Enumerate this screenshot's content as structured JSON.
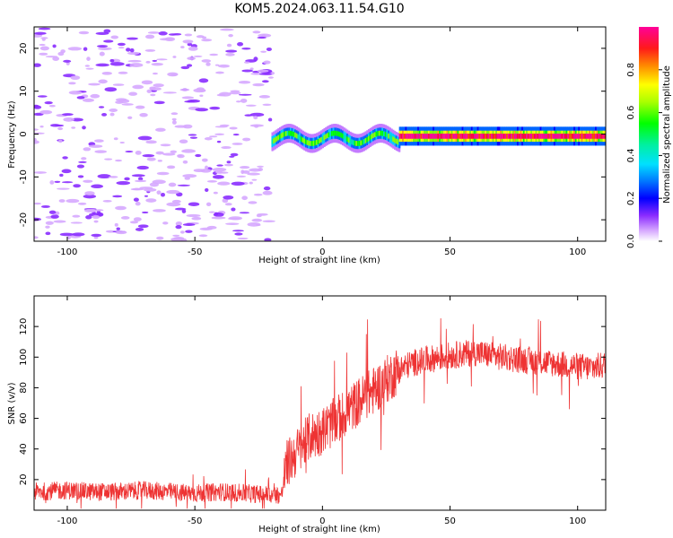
{
  "figure_title": "KOM5.2024.063.11.54.G10",
  "colors": {
    "snr_line": "#ee3333",
    "axes": "#000000",
    "colormap": [
      "#e8b8ff",
      "#c47bff",
      "#7a1cff",
      "#0000ff",
      "#0066ff",
      "#00ccff",
      "#00e8b0",
      "#00ff00",
      "#88ff00",
      "#ffff00",
      "#ffaa00",
      "#ff4400",
      "#ff0044",
      "#ff0099"
    ]
  },
  "chart_data": [
    {
      "type": "heatmap",
      "title": "KOM5.2024.063.11.54.G10",
      "xlabel": "Height of straight line (km)",
      "ylabel": "Frequency (Hz)",
      "xlim": [
        -113,
        111
      ],
      "ylim": [
        -25,
        25
      ],
      "x_ticks": [
        -100,
        -50,
        0,
        50,
        100
      ],
      "y_ticks": [
        -20,
        -10,
        0,
        10,
        20
      ],
      "colorbar": {
        "label": "Normalized spectral amplitude",
        "range": [
          0.0,
          1.0
        ],
        "ticks": [
          0.0,
          0.2,
          0.4,
          0.6,
          0.8
        ]
      },
      "regions": [
        {
          "x_range": [
            -113,
            -20
          ],
          "freq_range": [
            -25,
            25
          ],
          "amplitude_range": [
            0.0,
            0.15
          ],
          "pattern": "scattered noise"
        },
        {
          "x_range": [
            -20,
            30
          ],
          "freq_center": -1,
          "amplitude_range": [
            0.1,
            0.55
          ],
          "pattern": "band onset"
        },
        {
          "x_range": [
            30,
            111
          ],
          "freq_center": -0.5,
          "amplitude_range": [
            0.3,
            1.0
          ],
          "pattern": "narrow strong band"
        }
      ]
    },
    {
      "type": "line",
      "xlabel": "Height of straight line (km)",
      "ylabel": "SNR (v/v)",
      "xlim": [
        -113,
        111
      ],
      "ylim": [
        0,
        140
      ],
      "x_ticks": [
        -100,
        -50,
        0,
        50,
        100
      ],
      "y_ticks": [
        20,
        40,
        60,
        80,
        100,
        120
      ],
      "x": [
        -113,
        -100,
        -90,
        -80,
        -70,
        -60,
        -50,
        -40,
        -30,
        -20,
        -16,
        -14,
        -10,
        -5,
        0,
        5,
        10,
        15,
        20,
        25,
        30,
        35,
        40,
        50,
        60,
        70,
        80,
        90,
        100,
        105,
        111
      ],
      "y": [
        12,
        13,
        12,
        12,
        13,
        12,
        11,
        12,
        11,
        10,
        10,
        30,
        38,
        48,
        52,
        58,
        65,
        72,
        78,
        85,
        92,
        96,
        98,
        101,
        103,
        100,
        98,
        96,
        94,
        93,
        95
      ]
    }
  ]
}
